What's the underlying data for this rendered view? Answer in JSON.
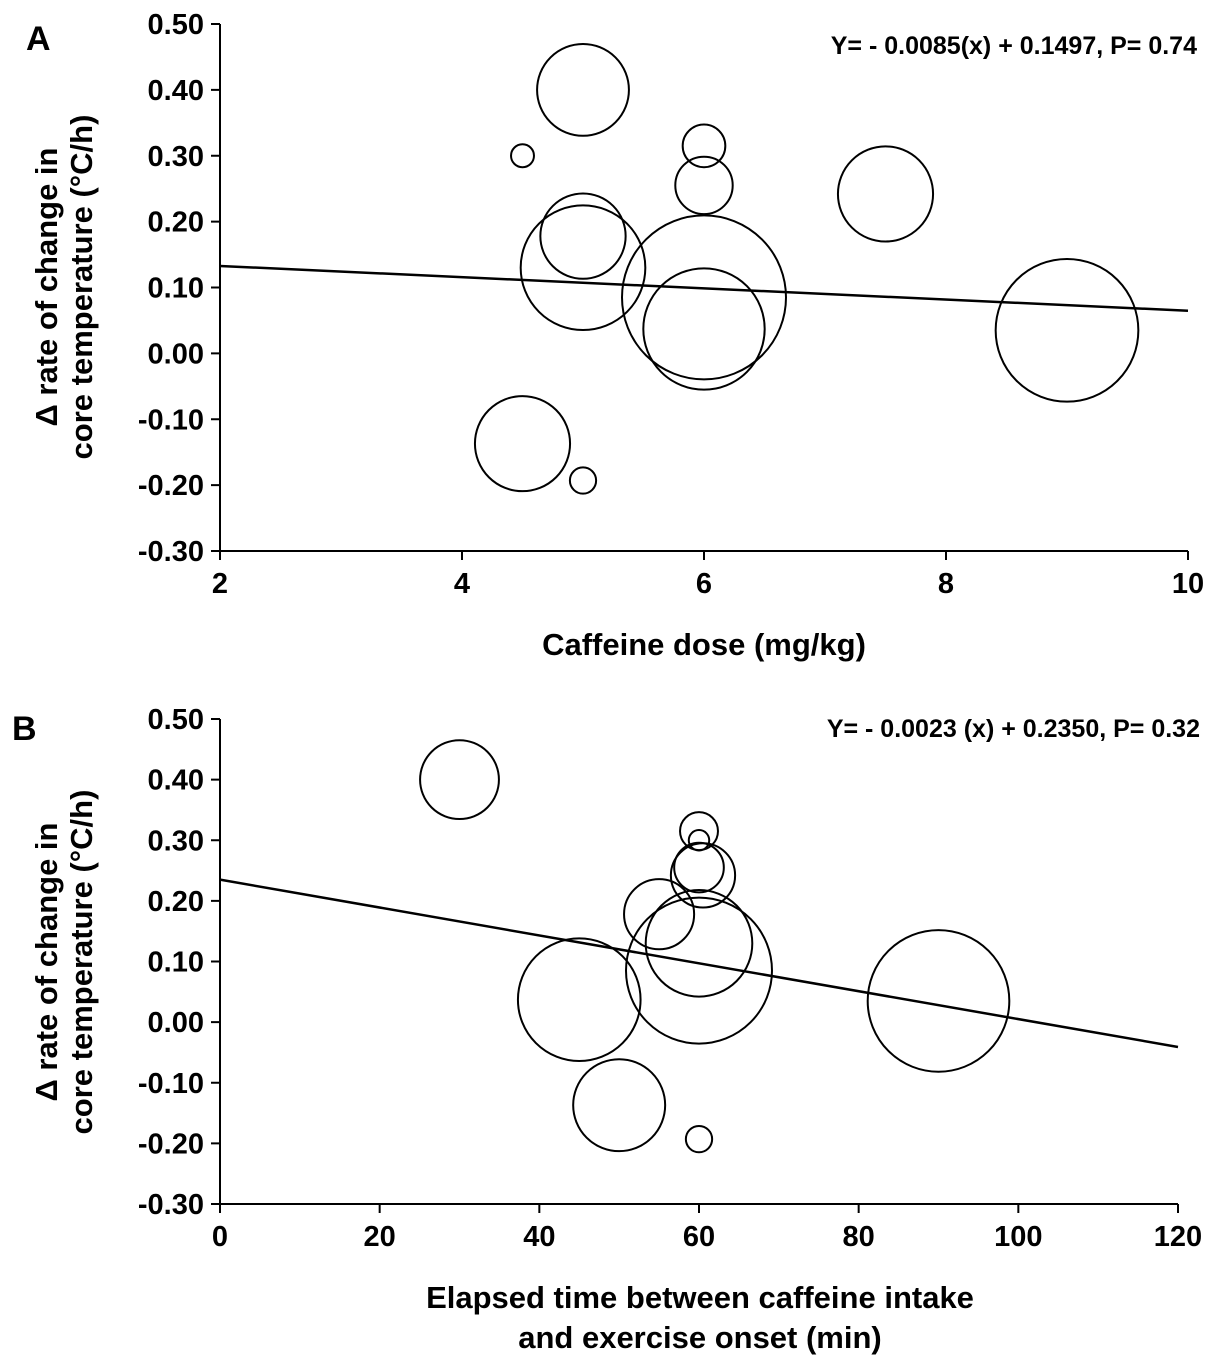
{
  "chart_data": [
    {
      "type": "scatter",
      "panel_label": "A",
      "xlabel": "Caffeine dose (mg/kg)",
      "ylabel": [
        "Δ rate of change in",
        "core temperature (°C/h)"
      ],
      "xlim": [
        2,
        10
      ],
      "ylim": [
        -0.3,
        0.5
      ],
      "xticks": [
        "2",
        "4",
        "6",
        "8",
        "10"
      ],
      "yticks": [
        "0.50",
        "0.40",
        "0.30",
        "0.20",
        "0.10",
        "0.00",
        "-0.10",
        "-0.20",
        "-0.30"
      ],
      "equation": "Y= - 0.0085(x) + 0.1497, P= 0.74",
      "regression": {
        "slope": -0.0085,
        "intercept": 0.1497
      },
      "bubble_size_note": "relative bubble size (study weight) as drawn",
      "points": [
        {
          "x": 5.0,
          "y": 0.4,
          "size": 0.56
        },
        {
          "x": 4.5,
          "y": 0.3,
          "size": 0.14
        },
        {
          "x": 6.0,
          "y": 0.315,
          "size": 0.26
        },
        {
          "x": 6.0,
          "y": 0.255,
          "size": 0.35
        },
        {
          "x": 7.5,
          "y": 0.242,
          "size": 0.58
        },
        {
          "x": 5.0,
          "y": 0.178,
          "size": 0.52
        },
        {
          "x": 5.0,
          "y": 0.13,
          "size": 0.76
        },
        {
          "x": 6.0,
          "y": 0.085,
          "size": 1.0
        },
        {
          "x": 6.0,
          "y": 0.037,
          "size": 0.74
        },
        {
          "x": 9.0,
          "y": 0.035,
          "size": 0.87
        },
        {
          "x": 4.5,
          "y": -0.137,
          "size": 0.58
        },
        {
          "x": 5.0,
          "y": -0.193,
          "size": 0.16
        }
      ]
    },
    {
      "type": "scatter",
      "panel_label": "B",
      "xlabel": [
        "Elapsed time between caffeine intake",
        "and exercise onset (min)"
      ],
      "ylabel": [
        "Δ rate of change in",
        "core temperature (°C/h)"
      ],
      "xlim": [
        0,
        120
      ],
      "ylim": [
        -0.3,
        0.5
      ],
      "xticks": [
        "0",
        "20",
        "40",
        "60",
        "80",
        "100",
        "120"
      ],
      "yticks": [
        "0.50",
        "0.40",
        "0.30",
        "0.20",
        "0.10",
        "0.00",
        "-0.10",
        "-0.20",
        "-0.30"
      ],
      "equation": "Y= - 0.0023 (x) + 0.2350, P= 0.32",
      "regression": {
        "slope": -0.0023,
        "intercept": 0.235
      },
      "bubble_size_note": "relative bubble size (study weight) as drawn",
      "points": [
        {
          "x": 30,
          "y": 0.4,
          "size": 0.54
        },
        {
          "x": 60,
          "y": 0.315,
          "size": 0.26
        },
        {
          "x": 60,
          "y": 0.3,
          "size": 0.14
        },
        {
          "x": 60,
          "y": 0.255,
          "size": 0.34
        },
        {
          "x": 60.5,
          "y": 0.242,
          "size": 0.44
        },
        {
          "x": 55,
          "y": 0.178,
          "size": 0.48
        },
        {
          "x": 60,
          "y": 0.13,
          "size": 0.73
        },
        {
          "x": 60,
          "y": 0.085,
          "size": 1.0
        },
        {
          "x": 45,
          "y": 0.037,
          "size": 0.84
        },
        {
          "x": 90,
          "y": 0.035,
          "size": 0.97
        },
        {
          "x": 50,
          "y": -0.137,
          "size": 0.63
        },
        {
          "x": 60,
          "y": -0.193,
          "size": 0.18
        }
      ]
    }
  ]
}
